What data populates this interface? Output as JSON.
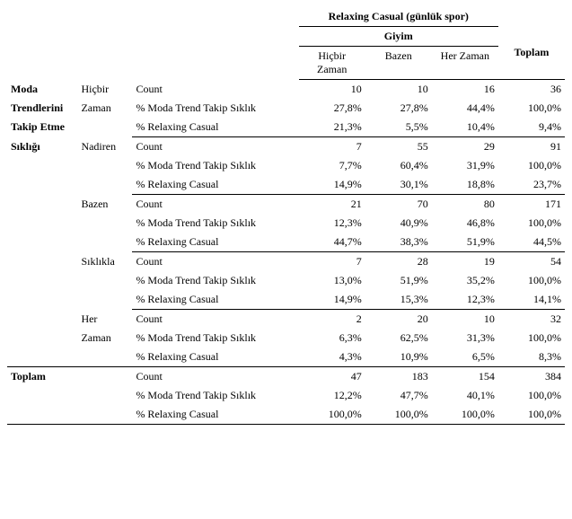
{
  "header": {
    "super": "Relaxing Casual  (günlük spor)",
    "sub": "Giyim",
    "cols": [
      "Hiçbir Zaman",
      "Bazen",
      "Her Zaman"
    ],
    "total": "Toplam"
  },
  "rowgroup_label": [
    "Moda",
    "Trendlerini",
    "Takip Etme",
    "Sıklığı"
  ],
  "stat_labels": {
    "count": "Count",
    "pct_trend": "% Moda Trend Takip Sıklık",
    "pct_relax": "% Relaxing Casual"
  },
  "groups": [
    {
      "label": [
        "Hiçbir",
        "Zaman"
      ],
      "count": [
        "10",
        "10",
        "16",
        "36"
      ],
      "pct_trend": [
        "27,8%",
        "27,8%",
        "44,4%",
        "100,0%"
      ],
      "pct_relax": [
        "21,3%",
        "5,5%",
        "10,4%",
        "9,4%"
      ]
    },
    {
      "label": [
        "Nadiren"
      ],
      "count": [
        "7",
        "55",
        "29",
        "91"
      ],
      "pct_trend": [
        "7,7%",
        "60,4%",
        "31,9%",
        "100,0%"
      ],
      "pct_relax": [
        "14,9%",
        "30,1%",
        "18,8%",
        "23,7%"
      ]
    },
    {
      "label": [
        "Bazen"
      ],
      "count": [
        "21",
        "70",
        "80",
        "171"
      ],
      "pct_trend": [
        "12,3%",
        "40,9%",
        "46,8%",
        "100,0%"
      ],
      "pct_relax": [
        "44,7%",
        "38,3%",
        "51,9%",
        "44,5%"
      ]
    },
    {
      "label": [
        "Sıklıkla"
      ],
      "count": [
        "7",
        "28",
        "19",
        "54"
      ],
      "pct_trend": [
        "13,0%",
        "51,9%",
        "35,2%",
        "100,0%"
      ],
      "pct_relax": [
        "14,9%",
        "15,3%",
        "12,3%",
        "14,1%"
      ]
    },
    {
      "label": [
        "Her",
        "Zaman"
      ],
      "count": [
        "2",
        "20",
        "10",
        "32"
      ],
      "pct_trend": [
        "6,3%",
        "62,5%",
        "31,3%",
        "100,0%"
      ],
      "pct_relax": [
        "4,3%",
        "10,9%",
        "6,5%",
        "8,3%"
      ]
    }
  ],
  "total_row": {
    "label": "Toplam",
    "count": [
      "47",
      "183",
      "154",
      "384"
    ],
    "pct_trend": [
      "12,2%",
      "47,7%",
      "40,1%",
      "100,0%"
    ],
    "pct_relax": [
      "100,0%",
      "100,0%",
      "100,0%",
      "100,0%"
    ]
  }
}
